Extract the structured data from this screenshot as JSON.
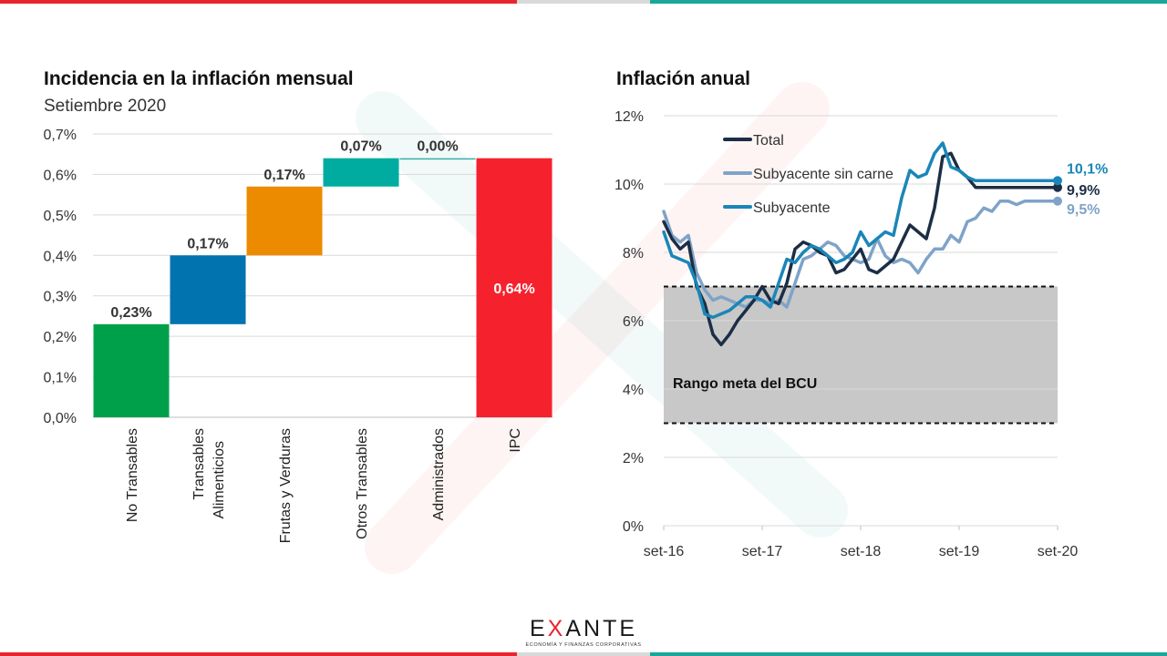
{
  "colors": {
    "red": "#e8252d",
    "teal": "#1aa69a",
    "grey": "#d9d9d9"
  },
  "left_panel": {
    "title": "Incidencia en la inflación mensual",
    "subtitle": "Setiembre 2020"
  },
  "right_panel": {
    "title": "Inflación anual"
  },
  "logo": {
    "word_start": "E",
    "word_x": "X",
    "word_end": "ANTE",
    "tagline": "ECONOMÍA Y FINANZAS CORPORATIVAS"
  },
  "chart_data": [
    {
      "type": "bar",
      "subtype": "waterfall",
      "title": "Incidencia en la inflación mensual",
      "subtitle": "Setiembre 2020",
      "categories": [
        "No Transables",
        "Transables Alimenticios",
        "Frutas y Verduras",
        "Otros Transables",
        "Administrados",
        "IPC"
      ],
      "category_lines": [
        [
          "No Transables"
        ],
        [
          "Transables",
          "Alimenticios"
        ],
        [
          "Frutas y Verduras"
        ],
        [
          "Otros Transables"
        ],
        [
          "Administrados"
        ],
        [
          "IPC"
        ]
      ],
      "values": [
        0.23,
        0.17,
        0.17,
        0.07,
        0.0,
        0.64
      ],
      "data_labels": [
        "0,23%",
        "0,17%",
        "0,17%",
        "0,07%",
        "0,00%",
        "0,64%"
      ],
      "is_total": [
        false,
        false,
        false,
        false,
        false,
        true
      ],
      "colors": [
        "#00a04a",
        "#0173ae",
        "#ec8b00",
        "#00aca0",
        "#3aaea8",
        "#f5222d"
      ],
      "ylim": [
        0,
        0.7
      ],
      "yticks": [
        0,
        0.1,
        0.2,
        0.3,
        0.4,
        0.5,
        0.6,
        0.7
      ],
      "ytick_labels": [
        "0,0%",
        "0,1%",
        "0,2%",
        "0,3%",
        "0,4%",
        "0,5%",
        "0,6%",
        "0,7%"
      ],
      "grid": true
    },
    {
      "type": "line",
      "title": "Inflación anual",
      "x_start": "set-16",
      "xtick_labels": [
        "set-16",
        "set-17",
        "set-18",
        "set-19",
        "set-20"
      ],
      "ylim": [
        0,
        12
      ],
      "yticks": [
        0,
        2,
        4,
        6,
        8,
        10,
        12
      ],
      "ytick_labels": [
        "0%",
        "2%",
        "4%",
        "6%",
        "8%",
        "10%",
        "12%"
      ],
      "grid": true,
      "legend_position": "top-left",
      "target_band": {
        "label": "Rango meta del BCU",
        "low": 3,
        "high": 7,
        "color": "#c8c8c8"
      },
      "series": [
        {
          "name": "Subyacente sin carne",
          "color": "#7fa3c8",
          "end_label": "9,5%",
          "values": [
            9.2,
            8.5,
            8.3,
            8.5,
            7.4,
            6.9,
            6.6,
            6.7,
            6.6,
            6.5,
            6.4,
            6.6,
            6.6,
            6.5,
            6.6,
            6.4,
            7.1,
            7.8,
            7.9,
            8.1,
            8.3,
            8.2,
            7.9,
            7.8,
            7.7,
            7.8,
            8.4,
            7.9,
            7.7,
            7.8,
            7.7,
            7.4,
            7.8,
            8.1,
            8.1,
            8.5,
            8.3,
            8.9,
            9.0,
            9.3,
            9.2,
            9.5,
            9.5,
            9.4,
            9.5,
            9.5,
            9.5,
            9.5,
            9.5
          ]
        },
        {
          "name": "Total",
          "color": "#1c2e45",
          "end_label": "9,9%",
          "values": [
            8.9,
            8.4,
            8.1,
            8.3,
            7.0,
            6.5,
            5.6,
            5.3,
            5.6,
            6.0,
            6.3,
            6.6,
            7.0,
            6.6,
            6.5,
            7.1,
            8.1,
            8.3,
            8.2,
            8.0,
            7.9,
            7.4,
            7.5,
            7.8,
            8.1,
            7.5,
            7.4,
            7.6,
            7.8,
            8.3,
            8.8,
            8.6,
            8.4,
            9.3,
            10.8,
            10.9,
            10.4,
            10.2,
            9.9,
            9.9,
            9.9,
            9.9,
            9.9,
            9.9,
            9.9,
            9.9,
            9.9,
            9.9,
            9.9
          ]
        },
        {
          "name": "Subyacente",
          "color": "#1a86b8",
          "end_label": "10,1%",
          "values": [
            8.6,
            7.9,
            7.8,
            7.7,
            7.1,
            6.2,
            6.1,
            6.2,
            6.3,
            6.5,
            6.7,
            6.7,
            6.6,
            6.4,
            7.1,
            7.8,
            7.7,
            8.0,
            8.2,
            8.1,
            7.9,
            7.7,
            7.8,
            8.0,
            8.6,
            8.2,
            8.4,
            8.6,
            8.5,
            9.6,
            10.4,
            10.2,
            10.3,
            10.9,
            11.2,
            10.5,
            10.4,
            10.2,
            10.1,
            10.1,
            10.1,
            10.1,
            10.1,
            10.1,
            10.1,
            10.1,
            10.1,
            10.1,
            10.1
          ]
        }
      ]
    }
  ]
}
